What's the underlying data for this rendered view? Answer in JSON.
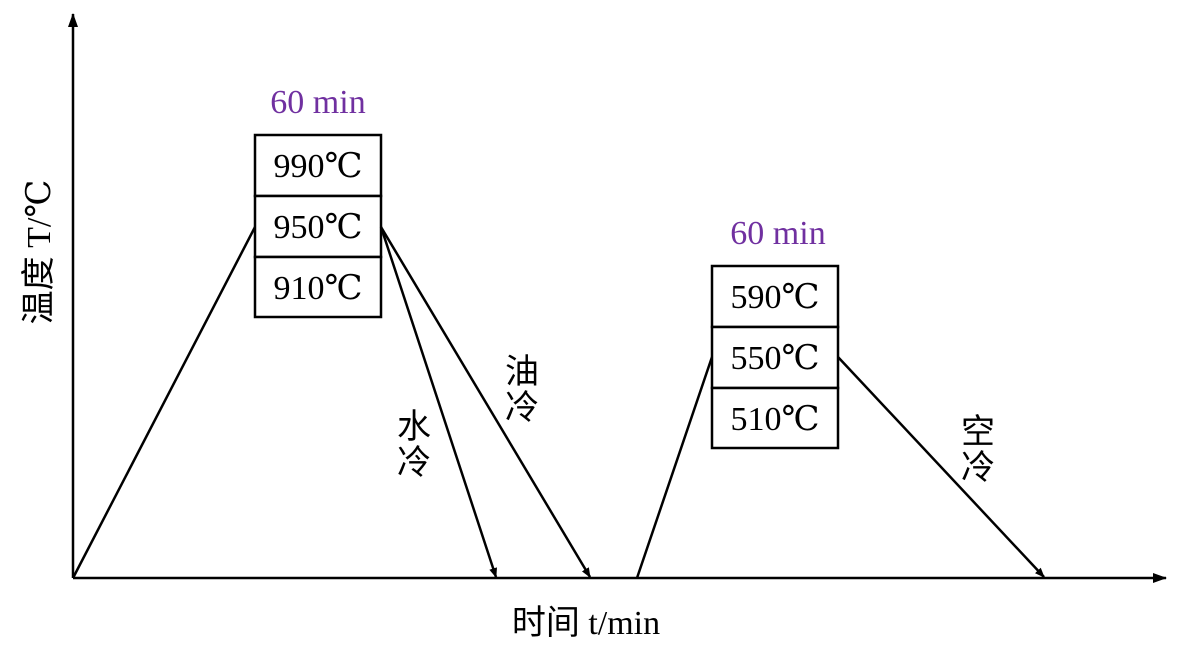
{
  "axes": {
    "y_label": "温度 T/℃",
    "x_label": "时间 t/min"
  },
  "stage1": {
    "duration": "60 min",
    "temps": [
      "990℃",
      "950℃",
      "910℃"
    ],
    "cool_water": [
      "水",
      "冷"
    ],
    "cool_oil": [
      "油",
      "冷"
    ]
  },
  "stage2": {
    "duration": "60 min",
    "temps": [
      "590℃",
      "550℃",
      "510℃"
    ],
    "cool_air": [
      "空",
      "冷"
    ]
  },
  "colors": {
    "line": "#000000",
    "duration_text": "#7030a0"
  }
}
